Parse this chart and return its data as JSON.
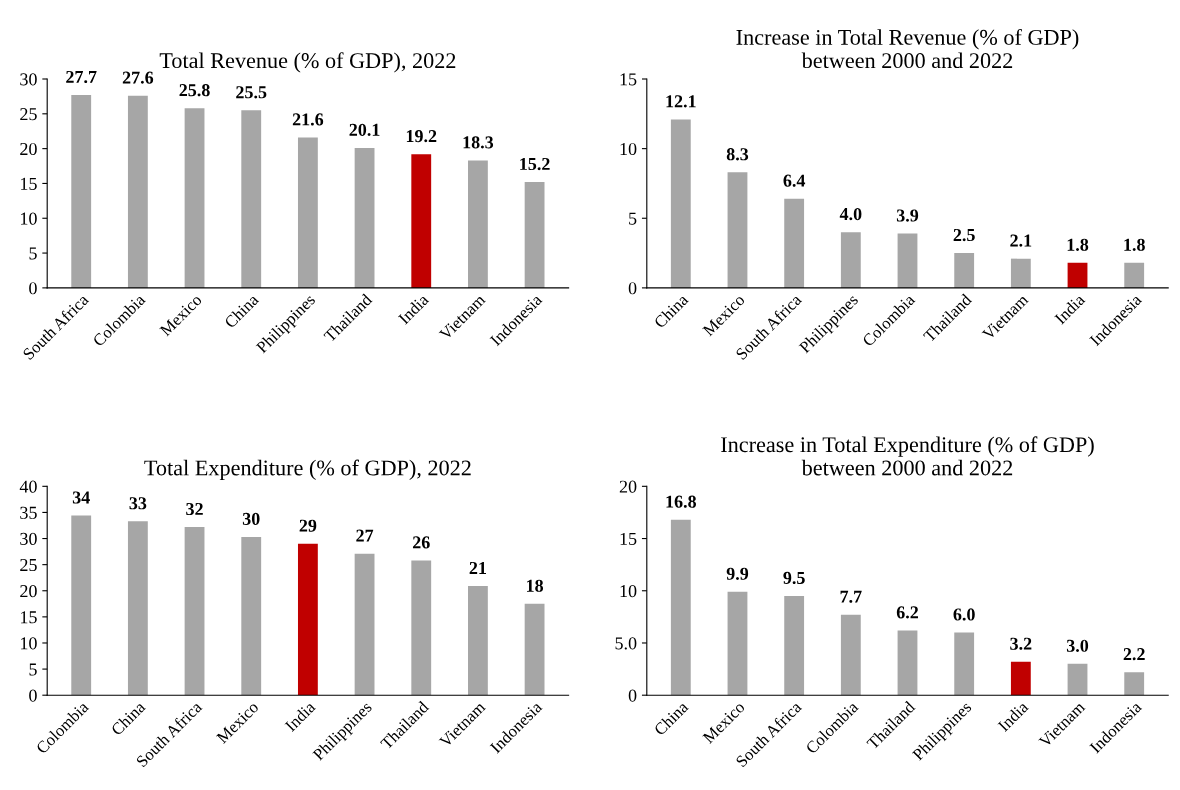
{
  "chart_data": [
    {
      "type": "bar",
      "title": "Total Revenue (% of GDP), 2022",
      "categories": [
        "South Africa",
        "Colombia",
        "Mexico",
        "China",
        "Philippines",
        "Thailand",
        "India",
        "Vietnam",
        "Indonesia"
      ],
      "values": [
        27.7,
        27.6,
        25.8,
        25.5,
        21.6,
        20.1,
        19.2,
        18.3,
        15.2
      ],
      "colors": [
        "#a6a6a6",
        "#a6a6a6",
        "#a6a6a6",
        "#a6a6a6",
        "#a6a6a6",
        "#a6a6a6",
        "#c00000",
        "#a6a6a6",
        "#a6a6a6"
      ],
      "value_labels": [
        "27.7",
        "27.6",
        "25.8",
        "25.5",
        "21.6",
        "20.1",
        "19.2",
        "18.3",
        "15.2"
      ],
      "ylim": [
        0,
        30
      ],
      "yticks": [
        0,
        5,
        10,
        15,
        20,
        25,
        30
      ],
      "grid": false,
      "legend": false
    },
    {
      "type": "bar",
      "title": "Increase in Total Revenue (% of GDP) between 2000 and 2022",
      "categories": [
        "China",
        "Mexico",
        "South Africa",
        "Philippines",
        "Colombia",
        "Thailand",
        "Vietnam",
        "India",
        "Indonesia"
      ],
      "values": [
        12.1,
        8.3,
        6.4,
        4.0,
        3.9,
        2.5,
        2.1,
        1.8,
        1.8
      ],
      "colors": [
        "#a6a6a6",
        "#a6a6a6",
        "#a6a6a6",
        "#a6a6a6",
        "#a6a6a6",
        "#a6a6a6",
        "#a6a6a6",
        "#c00000",
        "#a6a6a6"
      ],
      "value_labels": [
        "12.1",
        "8.3",
        "6.4",
        "4.0",
        "3.9",
        "2.5",
        "2.1",
        "1.8",
        "1.8"
      ],
      "ylim": [
        0,
        15
      ],
      "yticks": [
        0,
        5,
        10,
        15
      ],
      "grid": false,
      "legend": false
    },
    {
      "type": "bar",
      "title": "Total Expenditure (% of GDP), 2022",
      "categories": [
        "Colombia",
        "China",
        "South Africa",
        "Mexico",
        "India",
        "Philippines",
        "Thailand",
        "Vietnam",
        "Indonesia"
      ],
      "values": [
        34.4,
        33.3,
        32.2,
        30.3,
        29.0,
        27.1,
        25.8,
        20.9,
        17.5
      ],
      "colors": [
        "#a6a6a6",
        "#a6a6a6",
        "#a6a6a6",
        "#a6a6a6",
        "#c00000",
        "#a6a6a6",
        "#a6a6a6",
        "#a6a6a6",
        "#a6a6a6"
      ],
      "value_labels": [
        "34",
        "33",
        "32",
        "30",
        "29",
        "27",
        "26",
        "21",
        "18"
      ],
      "ylim": [
        0,
        40
      ],
      "yticks": [
        0,
        5,
        10,
        15,
        20,
        25,
        30,
        35,
        40
      ],
      "grid": false,
      "legend": false
    },
    {
      "type": "bar",
      "title": "Increase in Total Expenditure (% of GDP) between 2000 and 2022",
      "categories": [
        "China",
        "Mexico",
        "South Africa",
        "Colombia",
        "Thailand",
        "Philippines",
        "India",
        "Vietnam",
        "Indonesia"
      ],
      "values": [
        16.8,
        9.9,
        9.5,
        7.7,
        6.2,
        6.0,
        3.2,
        3.0,
        2.2
      ],
      "colors": [
        "#a6a6a6",
        "#a6a6a6",
        "#a6a6a6",
        "#a6a6a6",
        "#a6a6a6",
        "#a6a6a6",
        "#c00000",
        "#a6a6a6",
        "#a6a6a6"
      ],
      "value_labels": [
        "16.8",
        "9.9",
        "9.5",
        "7.7",
        "6.2",
        "6.0",
        "3.2",
        "3.0",
        "2.2"
      ],
      "ylim": [
        0,
        20
      ],
      "yticks": [
        0,
        {
          "value": 5,
          "label": "5.0"
        },
        10,
        15,
        20
      ],
      "grid": false,
      "legend": false
    }
  ]
}
